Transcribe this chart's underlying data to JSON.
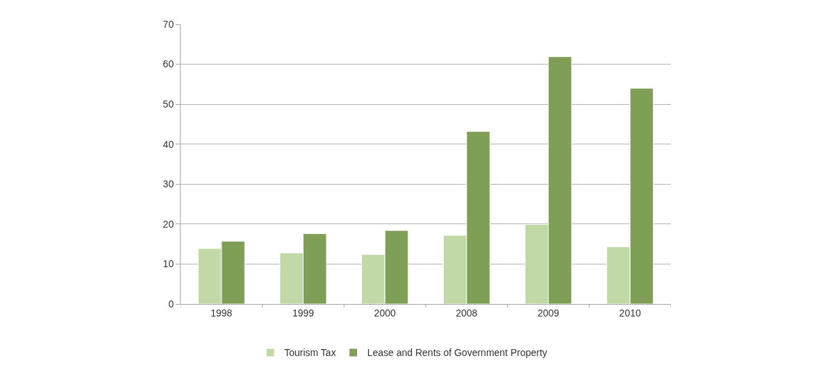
{
  "chart_data": {
    "type": "bar",
    "categories": [
      "1998",
      "1999",
      "2000",
      "2008",
      "2009",
      "2010"
    ],
    "series": [
      {
        "name": "Tourism Tax",
        "color": "#c0d9a6",
        "values": [
          13.9,
          12.8,
          12.4,
          17.2,
          19.9,
          14.3
        ]
      },
      {
        "name": "Lease and Rents of Government Property",
        "color": "#7f9f56",
        "values": [
          15.7,
          17.6,
          18.4,
          43.2,
          61.9,
          54.0
        ]
      }
    ],
    "ylim": [
      0,
      70
    ],
    "yticks": [
      0,
      10,
      20,
      30,
      40,
      50,
      60,
      70
    ],
    "grid": "y",
    "legend": "bottom"
  }
}
